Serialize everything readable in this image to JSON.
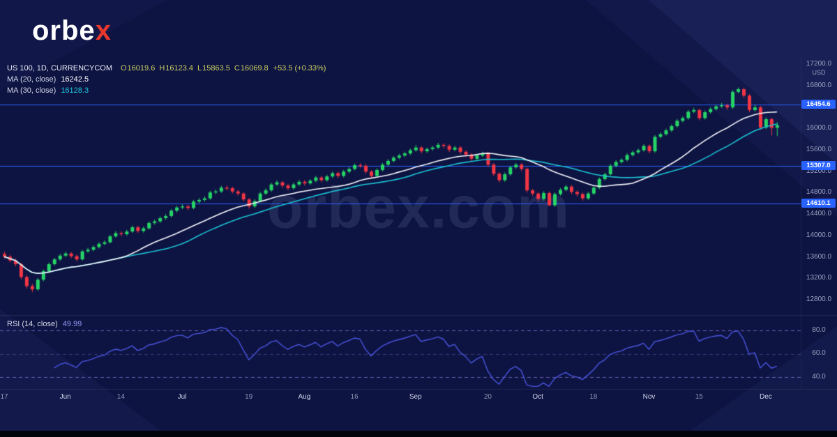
{
  "brand": {
    "logo_prefix": "orbe",
    "logo_suffix": "x",
    "watermark": "orbex.com"
  },
  "legend": {
    "symbol": "US 100, 1D, CURRENCYCOM",
    "ohlc": [
      {
        "k": "O",
        "v": "16019.6"
      },
      {
        "k": "H",
        "v": "16123.4"
      },
      {
        "k": "L",
        "v": "15863.5"
      },
      {
        "k": "C",
        "v": "16069.8"
      }
    ],
    "change": "+53.5 (+0.33%)",
    "ma20_label": "MA (20, close)",
    "ma20_value": "16242.5",
    "ma30_label": "MA (30, close)",
    "ma30_value": "16128.3",
    "rsi_label": "RSI (14, close)",
    "rsi_value": "49.99"
  },
  "price_axis": {
    "currency": "USD",
    "ticks": [
      17200,
      16800,
      16400,
      16000,
      15600,
      15200,
      14800,
      14400,
      14000,
      13600,
      13200,
      12800
    ],
    "level_tags": [
      {
        "value": 16454.6,
        "label": "16454.6"
      },
      {
        "value": 15307.0,
        "label": "15307.0"
      },
      {
        "value": 14610.1,
        "label": "14610.1"
      }
    ]
  },
  "rsi_axis": {
    "ticks": [
      80,
      60,
      40
    ]
  },
  "colors": {
    "background": "#0e1442",
    "up_candle": "#26d467",
    "down_candle": "#f23645",
    "ma20": "#f5f6fa",
    "ma30": "#1bc2d4",
    "level_line": "#2962ff",
    "rsi_line": "#4a55e0",
    "rsi_band": "rgba(122,111,208,0.8)",
    "accent_red": "#e8372c"
  },
  "chart_data": {
    "type": "candlestick",
    "symbol": "US 100",
    "timeframe": "1D",
    "exchange": "CURRENCYCOM",
    "ylim": [
      12520,
      17300
    ],
    "horizontal_levels": [
      16454.6,
      15307.0,
      14610.1
    ],
    "overlays": [
      {
        "name": "MA 20",
        "type": "sma",
        "period": 20,
        "value": 16242.5
      },
      {
        "name": "MA 30",
        "type": "sma",
        "period": 30,
        "value": 16128.3
      }
    ],
    "sub_chart": {
      "type": "rsi",
      "period": 14,
      "range": [
        31,
        91
      ],
      "bands": [
        80,
        60,
        40
      ],
      "current": 49.99
    },
    "x_ticks": [
      {
        "index": 0,
        "label": "17"
      },
      {
        "index": 11,
        "label": "Jun"
      },
      {
        "index": 21,
        "label": "14"
      },
      {
        "index": 32,
        "label": "Jul"
      },
      {
        "index": 44,
        "label": "19"
      },
      {
        "index": 54,
        "label": "Aug"
      },
      {
        "index": 63,
        "label": "16"
      },
      {
        "index": 74,
        "label": "Sep"
      },
      {
        "index": 87,
        "label": "20"
      },
      {
        "index": 96,
        "label": "Oct"
      },
      {
        "index": 106,
        "label": "18"
      },
      {
        "index": 116,
        "label": "Nov"
      },
      {
        "index": 125,
        "label": "15"
      },
      {
        "index": 137,
        "label": "Dec"
      }
    ],
    "ohlc": [
      [
        13660,
        13705,
        13575,
        13610
      ],
      [
        13610,
        13648,
        13505,
        13540
      ],
      [
        13540,
        13572,
        13431,
        13470
      ],
      [
        13470,
        13495,
        13190,
        13230
      ],
      [
        13230,
        13268,
        13015,
        13060
      ],
      [
        13060,
        13102,
        12948,
        13000
      ],
      [
        13000,
        13212,
        12975,
        13180
      ],
      [
        13180,
        13371,
        13152,
        13340
      ],
      [
        13340,
        13502,
        13318,
        13470
      ],
      [
        13470,
        13588,
        13442,
        13560
      ],
      [
        13560,
        13662,
        13531,
        13630
      ],
      [
        13630,
        13704,
        13601,
        13670
      ],
      [
        13670,
        13696,
        13585,
        13620
      ],
      [
        13620,
        13649,
        13522,
        13560
      ],
      [
        13560,
        13738,
        13538,
        13710
      ],
      [
        13710,
        13775,
        13682,
        13740
      ],
      [
        13740,
        13822,
        13714,
        13790
      ],
      [
        13790,
        13881,
        13765,
        13850
      ],
      [
        13850,
        13915,
        13822,
        13880
      ],
      [
        13880,
        14021,
        13858,
        13990
      ],
      [
        13990,
        14085,
        13964,
        14050
      ],
      [
        14050,
        14081,
        13992,
        14030
      ],
      [
        14030,
        14112,
        14002,
        14080
      ],
      [
        14080,
        14192,
        14055,
        14160
      ],
      [
        14160,
        14188,
        14052,
        14090
      ],
      [
        14090,
        14172,
        14061,
        14140
      ],
      [
        14140,
        14272,
        14115,
        14240
      ],
      [
        14240,
        14305,
        14209,
        14270
      ],
      [
        14270,
        14362,
        14241,
        14330
      ],
      [
        14330,
        14405,
        14298,
        14370
      ],
      [
        14370,
        14502,
        14344,
        14470
      ],
      [
        14470,
        14561,
        14439,
        14530
      ],
      [
        14530,
        14588,
        14498,
        14550
      ],
      [
        14550,
        14578,
        14481,
        14520
      ],
      [
        14520,
        14672,
        14495,
        14640
      ],
      [
        14640,
        14705,
        14608,
        14670
      ],
      [
        14670,
        14738,
        14641,
        14700
      ],
      [
        14700,
        14842,
        14672,
        14810
      ],
      [
        14810,
        14868,
        14778,
        14830
      ],
      [
        14830,
        14935,
        14802,
        14900
      ],
      [
        14900,
        14942,
        14851,
        14890
      ],
      [
        14890,
        14918,
        14792,
        14830
      ],
      [
        14830,
        14861,
        14748,
        14790
      ],
      [
        14790,
        14815,
        14642,
        14680
      ],
      [
        14680,
        14708,
        14508,
        14550
      ],
      [
        14550,
        14682,
        14522,
        14650
      ],
      [
        14650,
        14821,
        14625,
        14790
      ],
      [
        14790,
        14888,
        14762,
        14850
      ],
      [
        14850,
        14992,
        14822,
        14960
      ],
      [
        14960,
        15038,
        14931,
        15000
      ],
      [
        15000,
        15028,
        14898,
        14940
      ],
      [
        14940,
        14971,
        14848,
        14890
      ],
      [
        14890,
        14995,
        14862,
        14960
      ],
      [
        14960,
        15045,
        14930,
        15010
      ],
      [
        15010,
        15042,
        14941,
        14980
      ],
      [
        14980,
        15062,
        14952,
        15030
      ],
      [
        15030,
        15122,
        15001,
        15090
      ],
      [
        15090,
        15118,
        15002,
        15040
      ],
      [
        15040,
        15142,
        15012,
        15110
      ],
      [
        15110,
        15202,
        15081,
        15170
      ],
      [
        15170,
        15198,
        15078,
        15120
      ],
      [
        15120,
        15232,
        15092,
        15200
      ],
      [
        15200,
        15285,
        15171,
        15250
      ],
      [
        15250,
        15352,
        15222,
        15320
      ],
      [
        15320,
        15356,
        15272,
        15310
      ],
      [
        15310,
        15338,
        15162,
        15200
      ],
      [
        15200,
        15228,
        15078,
        15120
      ],
      [
        15120,
        15262,
        15095,
        15230
      ],
      [
        15230,
        15361,
        15202,
        15330
      ],
      [
        15330,
        15432,
        15301,
        15400
      ],
      [
        15400,
        15492,
        15371,
        15460
      ],
      [
        15460,
        15532,
        15431,
        15500
      ],
      [
        15500,
        15572,
        15471,
        15540
      ],
      [
        15540,
        15632,
        15511,
        15600
      ],
      [
        15600,
        15695,
        15571,
        15650
      ],
      [
        15650,
        15678,
        15538,
        15580
      ],
      [
        15580,
        15652,
        15551,
        15620
      ],
      [
        15620,
        15682,
        15591,
        15650
      ],
      [
        15650,
        15738,
        15621,
        15700
      ],
      [
        15700,
        15728,
        15638,
        15680
      ],
      [
        15680,
        15708,
        15568,
        15610
      ],
      [
        15610,
        15682,
        15581,
        15650
      ],
      [
        15650,
        15678,
        15528,
        15570
      ],
      [
        15570,
        15598,
        15478,
        15520
      ],
      [
        15520,
        15548,
        15398,
        15440
      ],
      [
        15440,
        15532,
        15411,
        15500
      ],
      [
        15500,
        15572,
        15471,
        15540
      ],
      [
        15540,
        15568,
        15288,
        15330
      ],
      [
        15330,
        15358,
        15118,
        15160
      ],
      [
        15160,
        15188,
        14998,
        15040
      ],
      [
        15040,
        15182,
        15011,
        15150
      ],
      [
        15150,
        15312,
        15121,
        15280
      ],
      [
        15280,
        15362,
        15251,
        15330
      ],
      [
        15330,
        15358,
        15208,
        15250
      ],
      [
        15250,
        15278,
        14808,
        14850
      ],
      [
        14850,
        14878,
        14748,
        14790
      ],
      [
        14790,
        14818,
        14648,
        14690
      ],
      [
        14690,
        14832,
        14661,
        14800
      ],
      [
        14800,
        14828,
        14560,
        14570
      ],
      [
        14570,
        14812,
        14541,
        14780
      ],
      [
        14780,
        14892,
        14751,
        14860
      ],
      [
        14860,
        14952,
        14831,
        14920
      ],
      [
        14920,
        14948,
        14778,
        14820
      ],
      [
        14820,
        14848,
        14738,
        14780
      ],
      [
        14780,
        14808,
        14658,
        14700
      ],
      [
        14700,
        14822,
        14671,
        14790
      ],
      [
        14790,
        14932,
        14761,
        14900
      ],
      [
        14900,
        15092,
        14871,
        15060
      ],
      [
        15060,
        15182,
        15031,
        15150
      ],
      [
        15150,
        15342,
        15121,
        15310
      ],
      [
        15310,
        15412,
        15281,
        15380
      ],
      [
        15380,
        15452,
        15351,
        15420
      ],
      [
        15420,
        15542,
        15391,
        15510
      ],
      [
        15510,
        15592,
        15481,
        15560
      ],
      [
        15560,
        15632,
        15531,
        15600
      ],
      [
        15600,
        15712,
        15571,
        15680
      ],
      [
        15680,
        15708,
        15538,
        15580
      ],
      [
        15580,
        15882,
        15551,
        15850
      ],
      [
        15850,
        15932,
        15821,
        15900
      ],
      [
        15900,
        16002,
        15871,
        15970
      ],
      [
        15970,
        16082,
        15941,
        16050
      ],
      [
        16050,
        16182,
        16021,
        16150
      ],
      [
        16150,
        16232,
        16121,
        16200
      ],
      [
        16200,
        16352,
        16171,
        16320
      ],
      [
        16320,
        16392,
        16291,
        16350
      ],
      [
        16350,
        16378,
        16158,
        16200
      ],
      [
        16200,
        16342,
        16171,
        16310
      ],
      [
        16310,
        16402,
        16281,
        16370
      ],
      [
        16370,
        16452,
        16341,
        16420
      ],
      [
        16420,
        16482,
        16391,
        16440
      ],
      [
        16440,
        16468,
        16358,
        16400
      ],
      [
        16400,
        16722,
        16371,
        16690
      ],
      [
        16690,
        16770,
        16661,
        16740
      ],
      [
        16740,
        16768,
        16578,
        16620
      ],
      [
        16620,
        16648,
        16308,
        16350
      ],
      [
        16350,
        16452,
        16321,
        16400
      ],
      [
        16400,
        16428,
        15983,
        16025
      ],
      [
        16025,
        16212,
        15996,
        16180
      ],
      [
        16180,
        16208,
        15875,
        16016.3
      ],
      [
        16019.6,
        16123.4,
        15863.5,
        16069.8
      ]
    ]
  }
}
